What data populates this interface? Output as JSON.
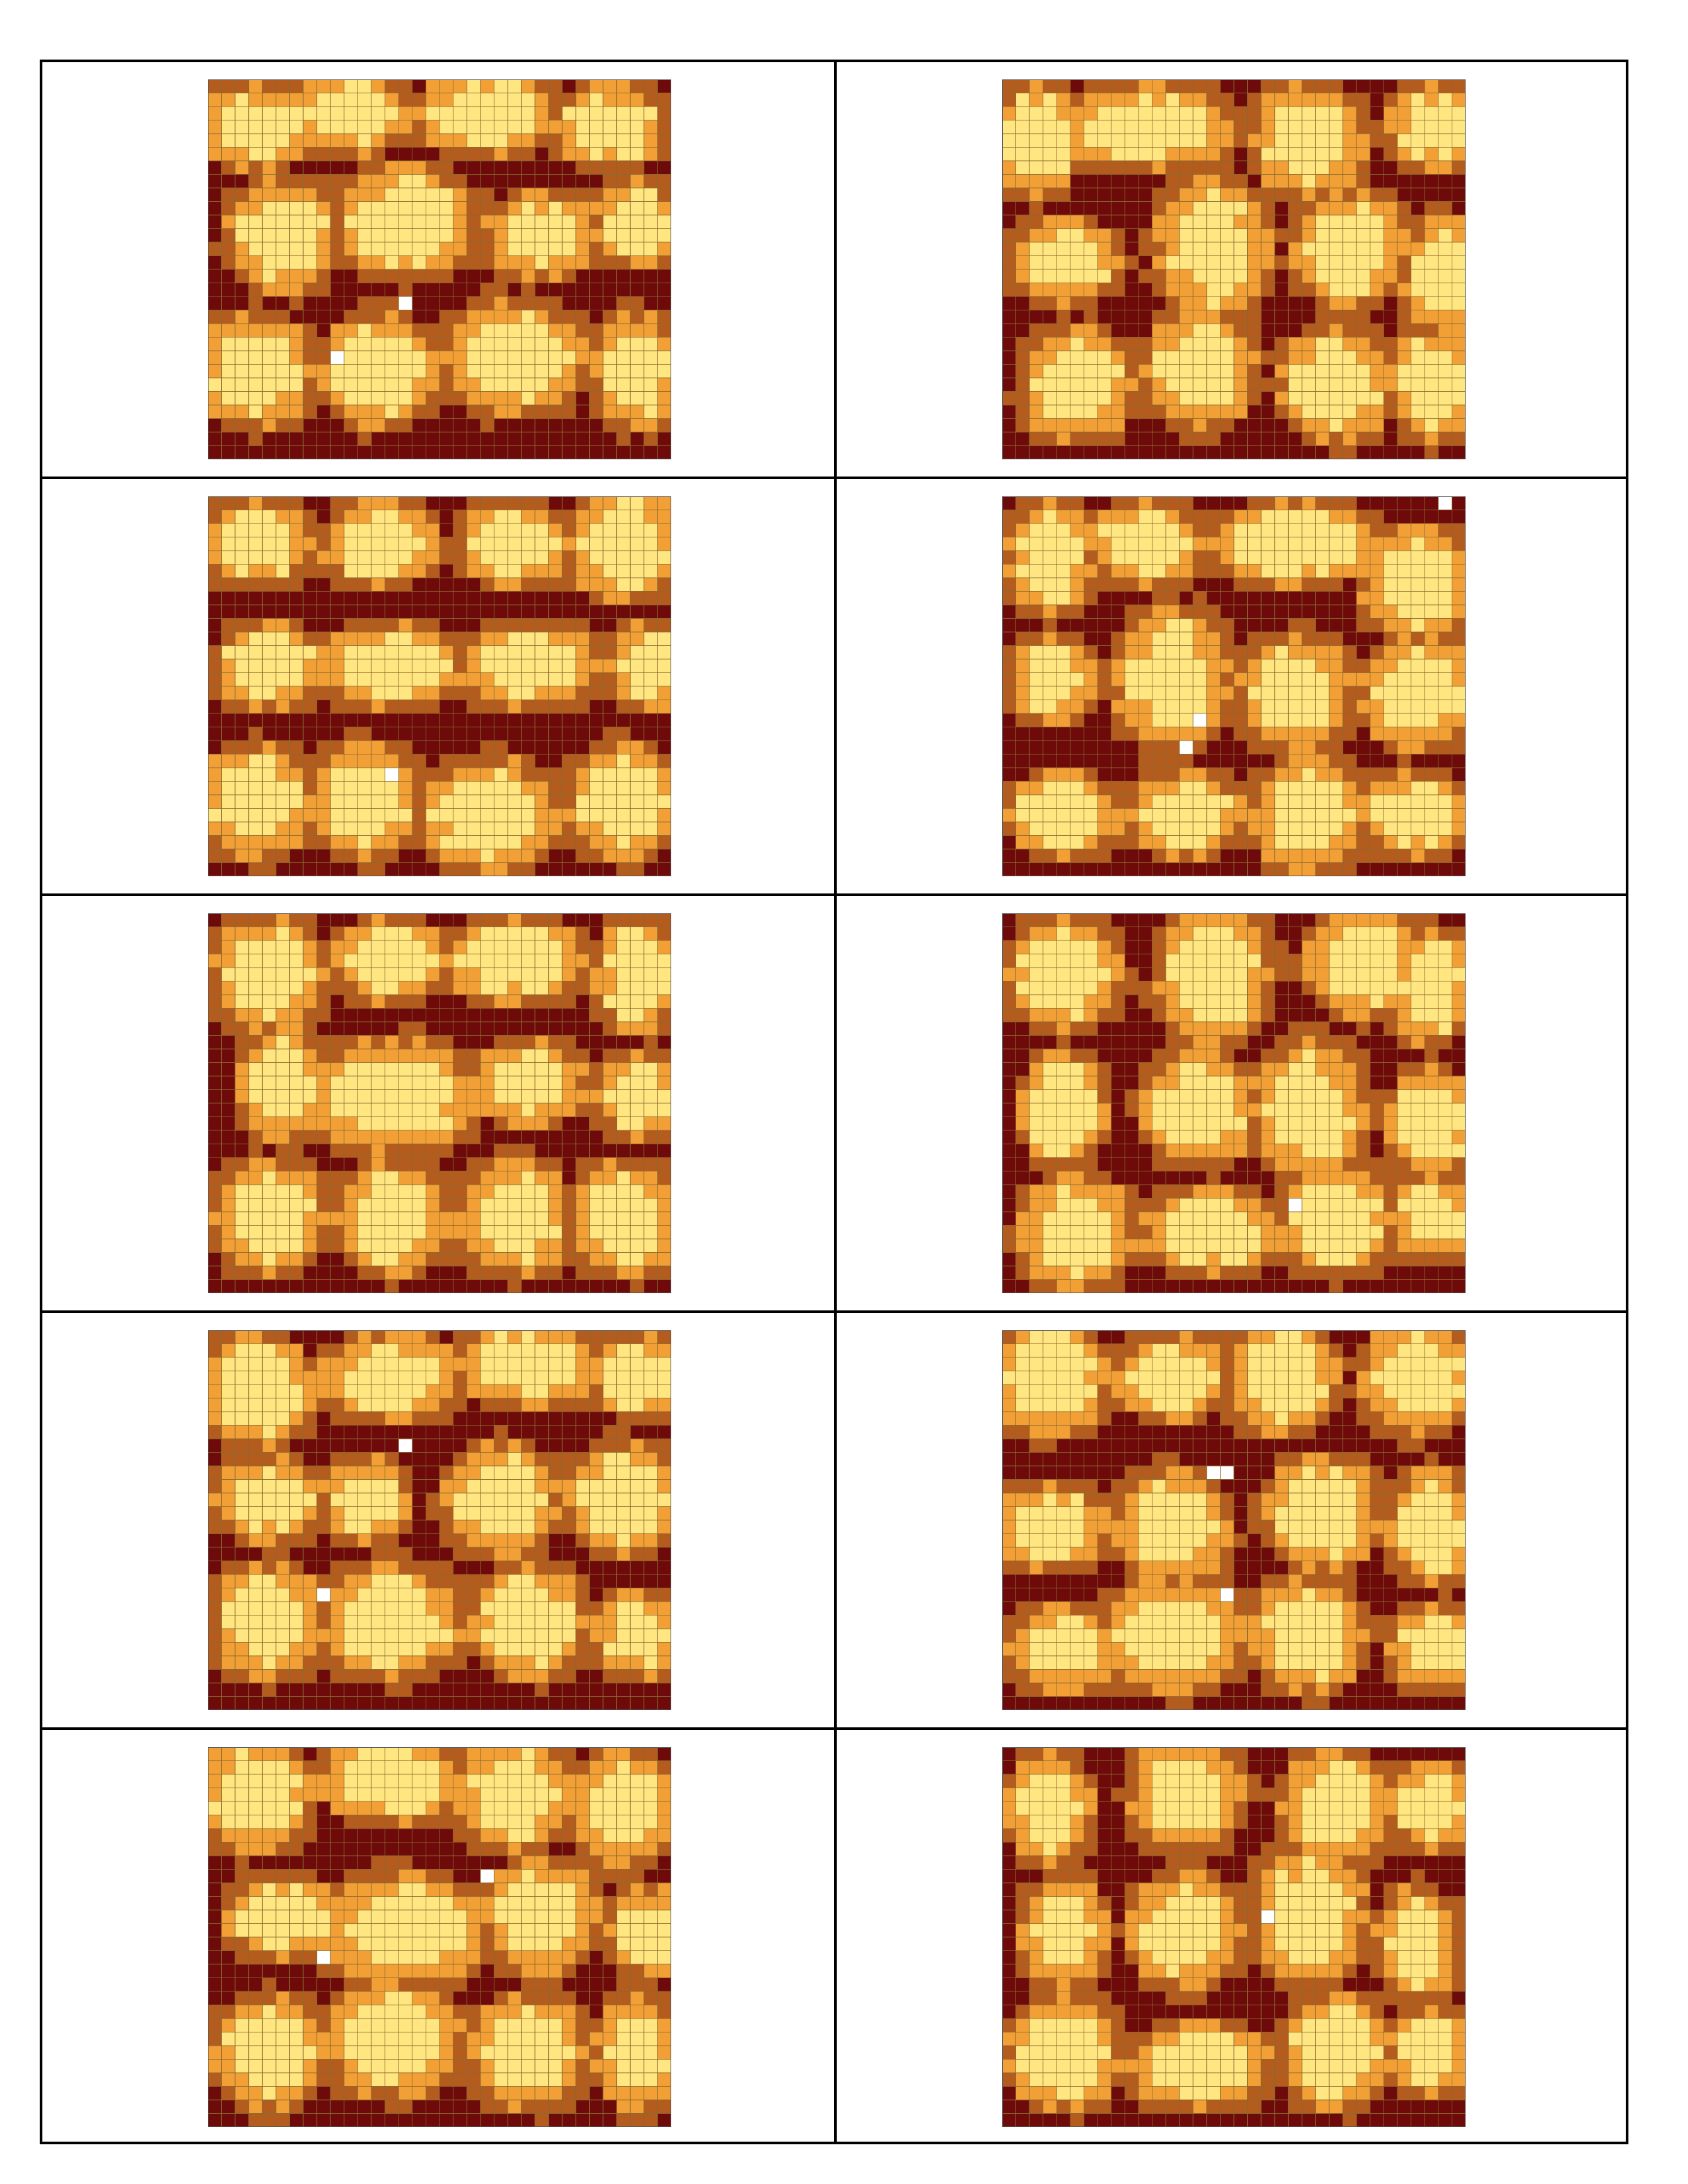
{
  "sheet": {
    "rows": 5,
    "cols": 2,
    "tile_grid": {
      "cols": 34,
      "rows": 28
    },
    "palette": {
      "d": "#6e0a0a",
      "b": "#b35c1e",
      "o": "#f2a035",
      "y": "#ffe680",
      "w": "#ffffff"
    },
    "grid_line_color": "#8a6a30",
    "tiles": [
      {
        "seed": 11,
        "blobs": [
          [
            3,
            3,
            4,
            3
          ],
          [
            10,
            2,
            4,
            3
          ],
          [
            20,
            2,
            5,
            3
          ],
          [
            29,
            3,
            4,
            3
          ],
          [
            5,
            11,
            4,
            4
          ],
          [
            14,
            10,
            5,
            4
          ],
          [
            24,
            11,
            4,
            3
          ],
          [
            31,
            10,
            3,
            3
          ],
          [
            3,
            21,
            4,
            4
          ],
          [
            12,
            21,
            4,
            4
          ],
          [
            22,
            20,
            5,
            4
          ],
          [
            31,
            21,
            3,
            4
          ]
        ],
        "holes": [
          [
            14,
            16
          ],
          [
            9,
            20
          ]
        ]
      },
      {
        "seed": 23,
        "blobs": [
          [
            2,
            4,
            3,
            4
          ],
          [
            10,
            3,
            6,
            3
          ],
          [
            22,
            4,
            4,
            4
          ],
          [
            31,
            3,
            3,
            3
          ],
          [
            4,
            13,
            4,
            3
          ],
          [
            15,
            12,
            4,
            5
          ],
          [
            25,
            12,
            4,
            4
          ],
          [
            32,
            14,
            3,
            4
          ],
          [
            5,
            22,
            4,
            4
          ],
          [
            14,
            21,
            4,
            4
          ],
          [
            24,
            22,
            4,
            4
          ],
          [
            31,
            22,
            3,
            4
          ]
        ],
        "holes": []
      },
      {
        "seed": 37,
        "blobs": [
          [
            3,
            3,
            4,
            3
          ],
          [
            12,
            3,
            4,
            3
          ],
          [
            22,
            3,
            4,
            3
          ],
          [
            30,
            3,
            4,
            4
          ],
          [
            4,
            12,
            4,
            3
          ],
          [
            13,
            12,
            5,
            3
          ],
          [
            23,
            12,
            5,
            3
          ],
          [
            32,
            12,
            3,
            3
          ],
          [
            3,
            22,
            4,
            4
          ],
          [
            11,
            22,
            4,
            4
          ],
          [
            20,
            23,
            5,
            4
          ],
          [
            30,
            22,
            4,
            4
          ]
        ],
        "holes": [
          [
            13,
            20
          ]
        ]
      },
      {
        "seed": 49,
        "blobs": [
          [
            3,
            4,
            3,
            4
          ],
          [
            10,
            3,
            4,
            3
          ],
          [
            21,
            3,
            6,
            3
          ],
          [
            30,
            6,
            4,
            4
          ],
          [
            3,
            13,
            3,
            3
          ],
          [
            12,
            13,
            4,
            5
          ],
          [
            21,
            14,
            4,
            4
          ],
          [
            30,
            14,
            4,
            4
          ],
          [
            4,
            23,
            4,
            3
          ],
          [
            13,
            23,
            4,
            3
          ],
          [
            22,
            23,
            4,
            4
          ],
          [
            30,
            23,
            4,
            3
          ]
        ],
        "holes": [
          [
            32,
            0
          ],
          [
            14,
            16
          ],
          [
            13,
            18
          ]
        ]
      },
      {
        "seed": 53,
        "blobs": [
          [
            4,
            4,
            4,
            4
          ],
          [
            13,
            3,
            4,
            3
          ],
          [
            22,
            3,
            5,
            3
          ],
          [
            31,
            4,
            3,
            4
          ],
          [
            5,
            12,
            3,
            4
          ],
          [
            13,
            13,
            6,
            4
          ],
          [
            23,
            12,
            4,
            3
          ],
          [
            31,
            13,
            3,
            3
          ],
          [
            4,
            22,
            4,
            4
          ],
          [
            13,
            22,
            4,
            4
          ],
          [
            22,
            22,
            4,
            4
          ],
          [
            30,
            22,
            4,
            4
          ]
        ],
        "holes": []
      },
      {
        "seed": 67,
        "blobs": [
          [
            4,
            4,
            4,
            4
          ],
          [
            15,
            4,
            4,
            5
          ],
          [
            26,
            3,
            4,
            4
          ],
          [
            31,
            5,
            3,
            4
          ],
          [
            4,
            14,
            3,
            4
          ],
          [
            14,
            14,
            4,
            4
          ],
          [
            22,
            14,
            4,
            5
          ],
          [
            31,
            15,
            3,
            4
          ],
          [
            5,
            23,
            4,
            4
          ],
          [
            15,
            23,
            5,
            3
          ],
          [
            24,
            22,
            4,
            4
          ],
          [
            31,
            22,
            3,
            3
          ]
        ],
        "holes": [
          [
            21,
            21
          ]
        ]
      },
      {
        "seed": 71,
        "blobs": [
          [
            3,
            4,
            4,
            4
          ],
          [
            13,
            3,
            5,
            3
          ],
          [
            23,
            2,
            5,
            3
          ],
          [
            31,
            3,
            3,
            3
          ],
          [
            4,
            12,
            4,
            3
          ],
          [
            11,
            12,
            3,
            3
          ],
          [
            21,
            12,
            4,
            4
          ],
          [
            30,
            12,
            4,
            4
          ],
          [
            4,
            21,
            4,
            4
          ],
          [
            13,
            21,
            5,
            4
          ],
          [
            23,
            21,
            4,
            4
          ],
          [
            31,
            22,
            3,
            3
          ]
        ],
        "holes": [
          [
            14,
            8
          ],
          [
            8,
            19
          ]
        ]
      },
      {
        "seed": 83,
        "blobs": [
          [
            3,
            3,
            4,
            4
          ],
          [
            12,
            3,
            4,
            3
          ],
          [
            20,
            3,
            4,
            4
          ],
          [
            30,
            3,
            4,
            4
          ],
          [
            3,
            14,
            4,
            3
          ],
          [
            12,
            14,
            4,
            4
          ],
          [
            23,
            13,
            4,
            4
          ],
          [
            31,
            14,
            3,
            4
          ],
          [
            4,
            23,
            4,
            3
          ],
          [
            12,
            22,
            5,
            4
          ],
          [
            22,
            22,
            4,
            4
          ],
          [
            31,
            23,
            3,
            3
          ]
        ],
        "holes": [
          [
            15,
            10
          ],
          [
            16,
            10
          ],
          [
            16,
            19
          ]
        ]
      },
      {
        "seed": 97,
        "blobs": [
          [
            3,
            3,
            4,
            4
          ],
          [
            13,
            2,
            5,
            3
          ],
          [
            22,
            3,
            4,
            4
          ],
          [
            30,
            4,
            4,
            4
          ],
          [
            5,
            12,
            4,
            3
          ],
          [
            14,
            13,
            6,
            4
          ],
          [
            24,
            12,
            4,
            4
          ],
          [
            32,
            13,
            3,
            3
          ],
          [
            4,
            22,
            4,
            4
          ],
          [
            13,
            21,
            5,
            4
          ],
          [
            23,
            22,
            4,
            4
          ],
          [
            31,
            22,
            3,
            4
          ]
        ],
        "holes": [
          [
            20,
            9
          ],
          [
            8,
            15
          ]
        ]
      },
      {
        "seed": 101,
        "blobs": [
          [
            3,
            4,
            3,
            4
          ],
          [
            13,
            3,
            4,
            4
          ],
          [
            24,
            4,
            4,
            4
          ],
          [
            31,
            4,
            3,
            3
          ],
          [
            4,
            13,
            3,
            4
          ],
          [
            13,
            13,
            4,
            4
          ],
          [
            22,
            12,
            4,
            5
          ],
          [
            30,
            14,
            3,
            4
          ],
          [
            4,
            22,
            4,
            4
          ],
          [
            14,
            23,
            5,
            3
          ],
          [
            24,
            22,
            4,
            4
          ],
          [
            31,
            22,
            3,
            3
          ]
        ],
        "holes": [
          [
            19,
            12
          ]
        ]
      }
    ]
  }
}
